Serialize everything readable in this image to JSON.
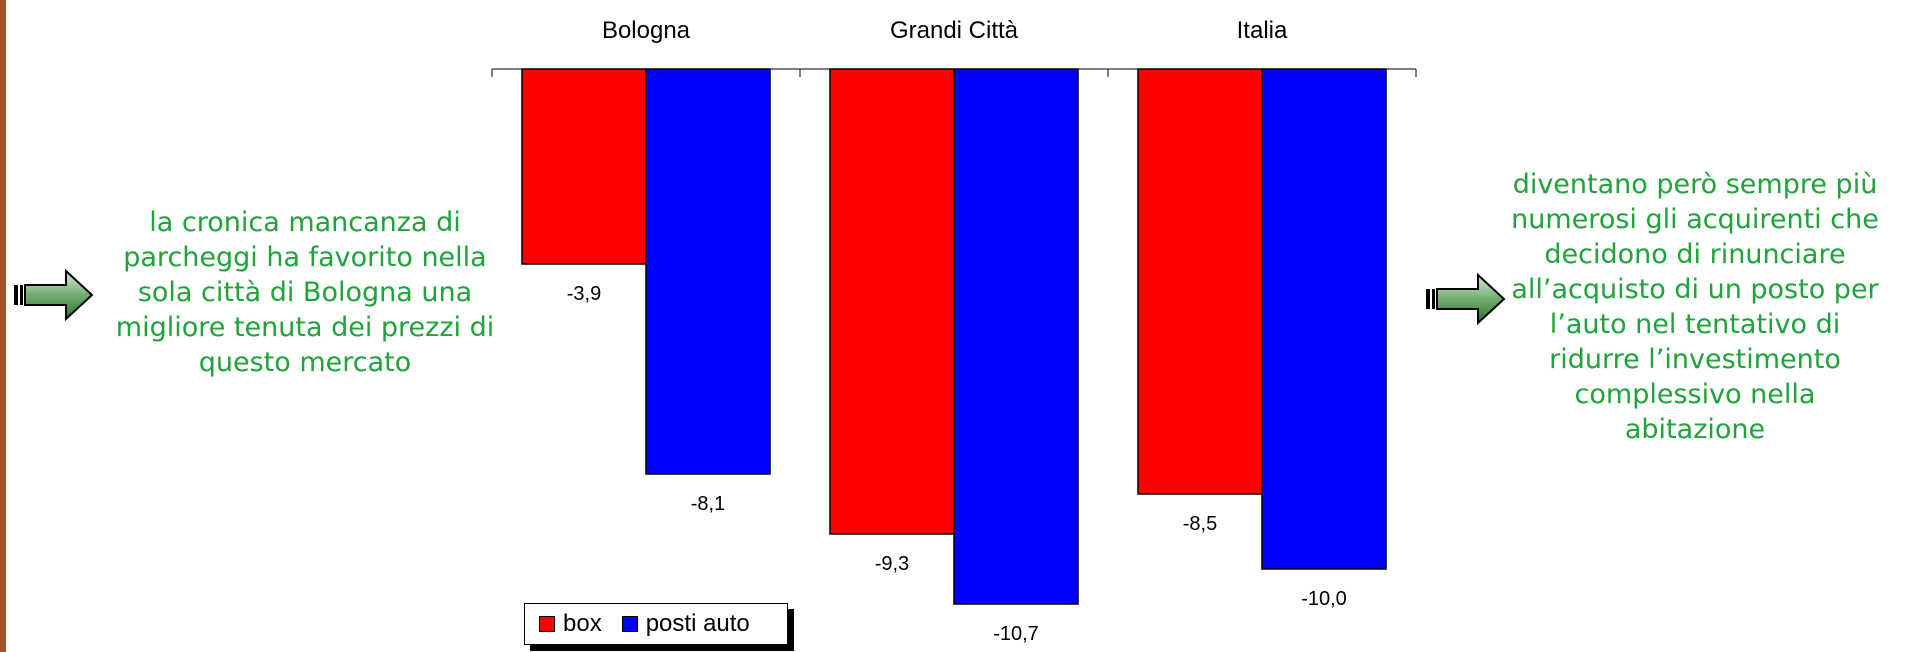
{
  "chart_data": {
    "type": "bar",
    "categories": [
      "Bologna",
      "Grandi Città",
      "Italia"
    ],
    "series": [
      {
        "name": "box",
        "color": "#ff0000",
        "values": [
          -3.9,
          -9.3,
          -8.5
        ],
        "labels": [
          "-3,9",
          "-9,3",
          "-8,5"
        ]
      },
      {
        "name": "posti auto",
        "color": "#0000ff",
        "values": [
          -8.1,
          -10.7,
          -10.0
        ],
        "labels": [
          "-8,1",
          "-10,7",
          "-10,0"
        ]
      }
    ],
    "ylim": [
      -10.7,
      0
    ],
    "legend_position": "bottom-left",
    "grid": false
  },
  "notes": {
    "left": "la cronica mancanza di parcheggi ha favorito nella sola città di Bologna una migliore tenuta dei prezzi di questo mercato",
    "right": "diventano però sempre più numerosi gli acquirenti che decidono di rinunciare all’acquisto di un posto per l’auto nel tentativo di ridurre l’investimento complessivo nella abitazione"
  },
  "colors": {
    "note_text": "#1fa33a",
    "arrow": "#3a8a3a",
    "border": "#a0522d"
  },
  "icons": {
    "left_arrow": "arrow-right-icon",
    "right_arrow": "arrow-right-icon"
  }
}
